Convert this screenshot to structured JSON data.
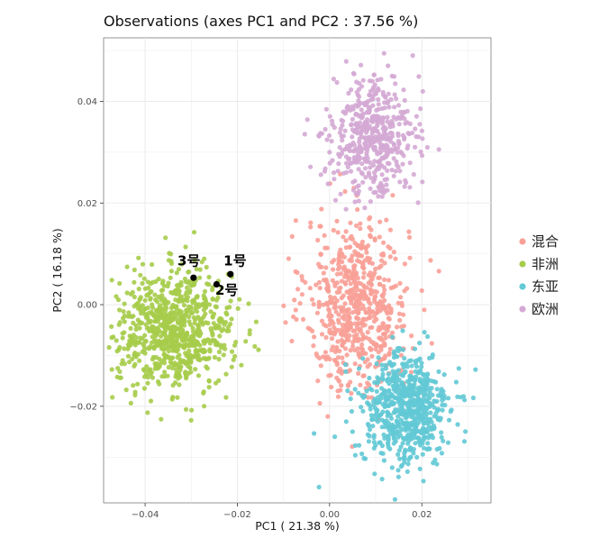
{
  "chart_data": {
    "type": "scatter",
    "title": "Observations (axes PC1 and PC2 :  37.56 %)",
    "xlabel": "PC1 ( 21.38 %)",
    "ylabel": "PC2 ( 16.18 %)",
    "xlim": [
      -0.049,
      0.035
    ],
    "ylim": [
      -0.039,
      0.0525
    ],
    "x_ticks": [
      -0.04,
      -0.02,
      0.0,
      0.02
    ],
    "x_tick_labels": [
      "−0.04",
      "−0.02",
      "0.00",
      "0.02"
    ],
    "y_ticks": [
      -0.02,
      0.0,
      0.02,
      0.04
    ],
    "y_tick_labels": [
      "−0.02",
      "0.00",
      "0.02",
      "0.04"
    ],
    "grid": true,
    "legend_position": "right",
    "series": [
      {
        "name": "混合",
        "color": "#F8A097",
        "center": [
          0.006,
          0.0
        ],
        "spread": [
          0.0055,
          0.0085
        ],
        "n": 650
      },
      {
        "name": "非洲",
        "color": "#A6CC4A",
        "center": [
          -0.0335,
          -0.005
        ],
        "spread": [
          0.0062,
          0.0058
        ],
        "n": 800
      },
      {
        "name": "东亚",
        "color": "#62C9D5",
        "center": [
          0.0165,
          -0.0205
        ],
        "spread": [
          0.0048,
          0.0055
        ],
        "n": 650
      },
      {
        "name": "欧洲",
        "color": "#D4A8D4",
        "center": [
          0.0095,
          0.033
        ],
        "spread": [
          0.0045,
          0.0058
        ],
        "n": 500
      }
    ],
    "annotations": [
      {
        "label": "1号",
        "x": -0.0215,
        "y": 0.006,
        "label_x": -0.0205,
        "label_y": 0.0077
      },
      {
        "label": "2号",
        "x": -0.0245,
        "y": 0.004,
        "label_x": -0.0223,
        "label_y": 0.002
      },
      {
        "label": "3号",
        "x": -0.0295,
        "y": 0.0053,
        "label_x": -0.0305,
        "label_y": 0.0077
      }
    ],
    "annotation_color": "#000000"
  }
}
